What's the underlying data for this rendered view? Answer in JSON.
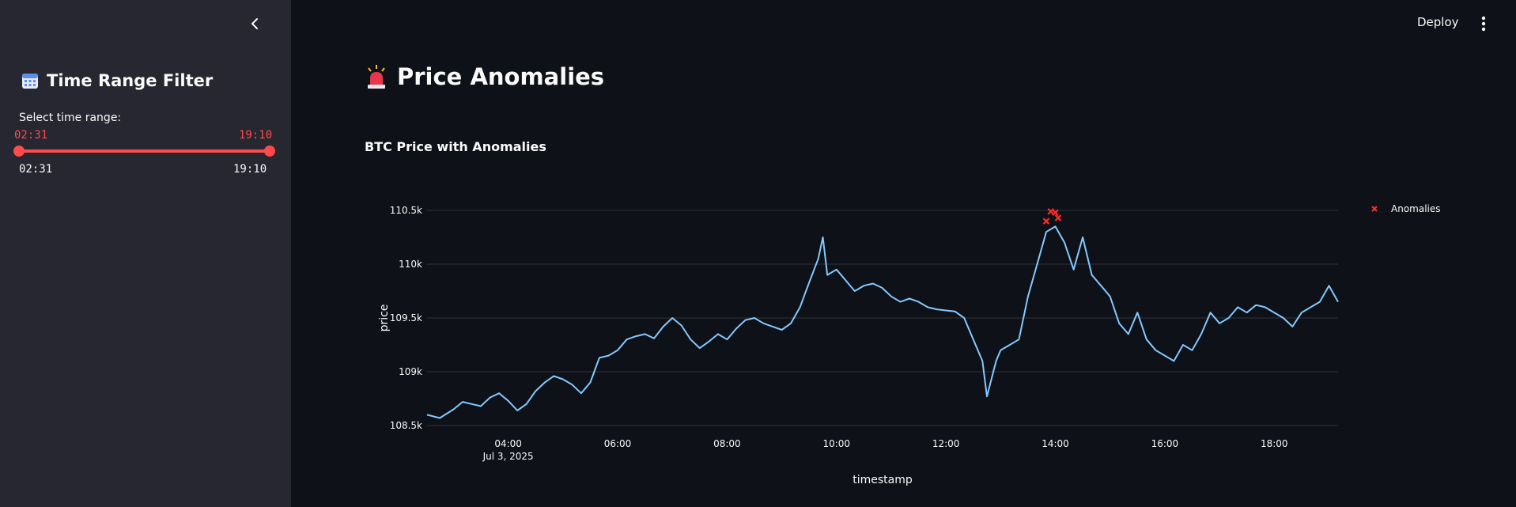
{
  "sidebar": {
    "collapse_icon": "chevron-left-icon",
    "title_icon": "calendar-icon",
    "title": "Time Range Filter",
    "slider": {
      "label": "Select time range:",
      "start": "02:31",
      "end": "19:10",
      "min": "02:31",
      "max": "19:10"
    }
  },
  "header": {
    "deploy_label": "Deploy",
    "menu_icon": "vertical-dots-icon"
  },
  "main": {
    "title_icon": "siren-icon",
    "title": "Price Anomalies",
    "chart_title": "BTC Price with Anomalies"
  },
  "colors": {
    "accent": "#ff4b4b",
    "line": "#83c9ff",
    "anomaly": "#ff2b2b",
    "background": "#0e1117",
    "sidebar": "#262730"
  },
  "chart_data": {
    "type": "line",
    "title": "BTC Price with Anomalies",
    "xlabel": "timestamp",
    "ylabel": "price",
    "ylim": [
      108500,
      110500
    ],
    "xlim": [
      "2025-07-03 02:31",
      "2025-07-03 19:10"
    ],
    "y_ticks": [
      {
        "value": 108500,
        "label": "108.5k"
      },
      {
        "value": 109000,
        "label": "109k"
      },
      {
        "value": 109500,
        "label": "109.5k"
      },
      {
        "value": 110000,
        "label": "110k"
      },
      {
        "value": 110500,
        "label": "110.5k"
      }
    ],
    "x_ticks": [
      {
        "value": "04:00",
        "label": "04:00",
        "sublabel": "Jul 3, 2025"
      },
      {
        "value": "06:00",
        "label": "06:00",
        "sublabel": ""
      },
      {
        "value": "08:00",
        "label": "08:00",
        "sublabel": ""
      },
      {
        "value": "10:00",
        "label": "10:00",
        "sublabel": ""
      },
      {
        "value": "12:00",
        "label": "12:00",
        "sublabel": ""
      },
      {
        "value": "14:00",
        "label": "14:00",
        "sublabel": ""
      },
      {
        "value": "16:00",
        "label": "16:00",
        "sublabel": ""
      },
      {
        "value": "18:00",
        "label": "18:00",
        "sublabel": ""
      }
    ],
    "grid": true,
    "legend_position": "top-right",
    "series": [
      {
        "type": "line",
        "color": "#83c9ff",
        "points": [
          [
            "02:31",
            108600
          ],
          [
            "02:45",
            108570
          ],
          [
            "03:00",
            108650
          ],
          [
            "03:10",
            108720
          ],
          [
            "03:20",
            108700
          ],
          [
            "03:30",
            108680
          ],
          [
            "03:40",
            108760
          ],
          [
            "03:50",
            108800
          ],
          [
            "04:00",
            108730
          ],
          [
            "04:10",
            108640
          ],
          [
            "04:20",
            108700
          ],
          [
            "04:30",
            108820
          ],
          [
            "04:40",
            108900
          ],
          [
            "04:50",
            108960
          ],
          [
            "05:00",
            108930
          ],
          [
            "05:10",
            108880
          ],
          [
            "05:20",
            108800
          ],
          [
            "05:30",
            108900
          ],
          [
            "05:40",
            109130
          ],
          [
            "05:50",
            109150
          ],
          [
            "06:00",
            109200
          ],
          [
            "06:10",
            109300
          ],
          [
            "06:20",
            109330
          ],
          [
            "06:30",
            109350
          ],
          [
            "06:40",
            109310
          ],
          [
            "06:50",
            109420
          ],
          [
            "07:00",
            109500
          ],
          [
            "07:10",
            109430
          ],
          [
            "07:20",
            109300
          ],
          [
            "07:30",
            109220
          ],
          [
            "07:40",
            109280
          ],
          [
            "07:50",
            109350
          ],
          [
            "08:00",
            109300
          ],
          [
            "08:10",
            109400
          ],
          [
            "08:20",
            109480
          ],
          [
            "08:30",
            109500
          ],
          [
            "08:40",
            109450
          ],
          [
            "08:50",
            109420
          ],
          [
            "09:00",
            109390
          ],
          [
            "09:10",
            109450
          ],
          [
            "09:20",
            109600
          ],
          [
            "09:30",
            109830
          ],
          [
            "09:40",
            110050
          ],
          [
            "09:45",
            110250
          ],
          [
            "09:50",
            109900
          ],
          [
            "10:00",
            109950
          ],
          [
            "10:10",
            109850
          ],
          [
            "10:20",
            109750
          ],
          [
            "10:30",
            109800
          ],
          [
            "10:40",
            109820
          ],
          [
            "10:50",
            109780
          ],
          [
            "11:00",
            109700
          ],
          [
            "11:10",
            109650
          ],
          [
            "11:20",
            109680
          ],
          [
            "11:30",
            109650
          ],
          [
            "11:40",
            109600
          ],
          [
            "11:50",
            109580
          ],
          [
            "12:00",
            109570
          ],
          [
            "12:10",
            109560
          ],
          [
            "12:20",
            109500
          ],
          [
            "12:30",
            109300
          ],
          [
            "12:40",
            109100
          ],
          [
            "12:45",
            108770
          ],
          [
            "12:55",
            109100
          ],
          [
            "13:00",
            109200
          ],
          [
            "13:10",
            109250
          ],
          [
            "13:20",
            109300
          ],
          [
            "13:30",
            109700
          ],
          [
            "13:40",
            110000
          ],
          [
            "13:50",
            110300
          ],
          [
            "14:00",
            110350
          ],
          [
            "14:10",
            110200
          ],
          [
            "14:20",
            109950
          ],
          [
            "14:30",
            110250
          ],
          [
            "14:40",
            109900
          ],
          [
            "14:50",
            109800
          ],
          [
            "15:00",
            109700
          ],
          [
            "15:10",
            109450
          ],
          [
            "15:20",
            109350
          ],
          [
            "15:30",
            109550
          ],
          [
            "15:40",
            109300
          ],
          [
            "15:50",
            109200
          ],
          [
            "16:00",
            109150
          ],
          [
            "16:10",
            109100
          ],
          [
            "16:20",
            109250
          ],
          [
            "16:30",
            109200
          ],
          [
            "16:40",
            109350
          ],
          [
            "16:50",
            109550
          ],
          [
            "17:00",
            109450
          ],
          [
            "17:10",
            109500
          ],
          [
            "17:20",
            109600
          ],
          [
            "17:30",
            109550
          ],
          [
            "17:40",
            109620
          ],
          [
            "17:50",
            109600
          ],
          [
            "18:00",
            109550
          ],
          [
            "18:10",
            109500
          ],
          [
            "18:20",
            109420
          ],
          [
            "18:30",
            109550
          ],
          [
            "18:40",
            109600
          ],
          [
            "18:50",
            109650
          ],
          [
            "19:00",
            109800
          ],
          [
            "19:10",
            109650
          ]
        ]
      },
      {
        "name": "Anomalies",
        "type": "scatter",
        "marker": "x",
        "color": "#ff2b2b",
        "points": [
          [
            "13:50",
            110400
          ],
          [
            "13:55",
            110490
          ],
          [
            "14:00",
            110480
          ],
          [
            "14:03",
            110430
          ]
        ]
      }
    ]
  }
}
